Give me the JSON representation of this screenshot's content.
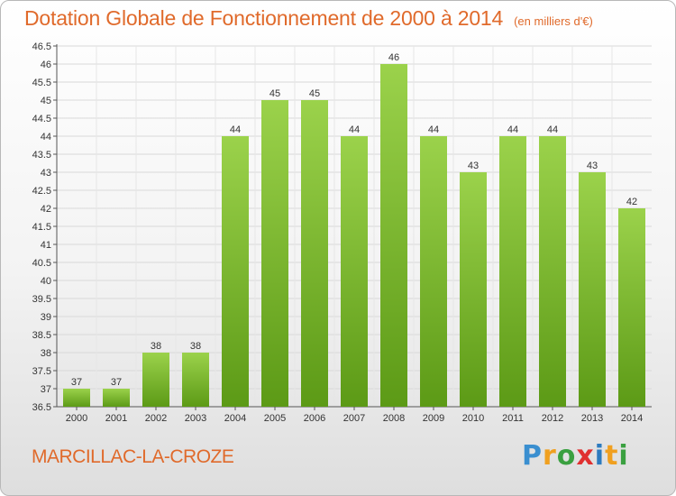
{
  "title": "Dotation Globale de Fonctionnement de 2000 à 2014",
  "subtitle": "(en milliers d'€)",
  "commune": "MARCILLAC-LA-CROZE",
  "logo": "Proxiti",
  "colors": {
    "title": "#e06a2b",
    "bar_top": "#9bd24b",
    "bar_bottom": "#5c9a16",
    "grid": "#d9d9d9"
  },
  "chart_data": {
    "type": "bar",
    "categories": [
      "2000",
      "2001",
      "2002",
      "2003",
      "2004",
      "2005",
      "2006",
      "2007",
      "2008",
      "2009",
      "2010",
      "2011",
      "2012",
      "2013",
      "2014"
    ],
    "values": [
      37,
      37,
      38,
      38,
      44,
      45,
      45,
      44,
      46,
      44,
      43,
      44,
      44,
      43,
      42
    ],
    "ylim": [
      36.5,
      46.5
    ],
    "yticks": [
      "36.5",
      "37",
      "37.5",
      "38",
      "38.5",
      "39",
      "39.5",
      "40",
      "40.5",
      "41",
      "41.5",
      "42",
      "42.5",
      "43",
      "43.5",
      "44",
      "44.5",
      "45",
      "45.5",
      "46",
      "46.5"
    ],
    "grid": true
  }
}
